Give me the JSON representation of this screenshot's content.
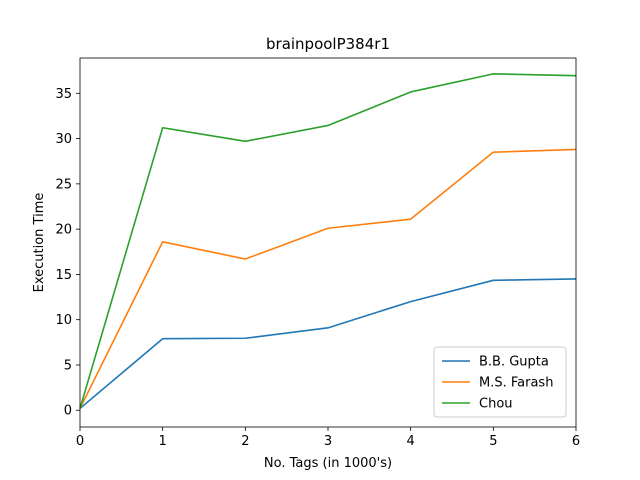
{
  "chart_data": {
    "type": "line",
    "title": "brainpoolP384r1",
    "xlabel": "No. Tags (in 1000's)",
    "ylabel": "Execution Time",
    "x": [
      0,
      1,
      2,
      3,
      4,
      5,
      6
    ],
    "xlim": [
      0,
      6
    ],
    "ylim": [
      -1.85,
      38.9
    ],
    "xticks": [
      0,
      1,
      2,
      3,
      4,
      5,
      6
    ],
    "yticks": [
      0,
      5,
      10,
      15,
      20,
      25,
      30,
      35
    ],
    "grid": false,
    "legend_position": "lower-right",
    "series": [
      {
        "name": "B.B. Gupta",
        "color": "#1f77b4",
        "values": [
          0.2,
          7.9,
          7.95,
          9.1,
          12.0,
          14.35,
          14.5
        ]
      },
      {
        "name": "M.S. Farash",
        "color": "#ff7f0e",
        "values": [
          0.2,
          18.6,
          16.7,
          20.1,
          21.1,
          28.5,
          28.8
        ]
      },
      {
        "name": "Chou",
        "color": "#2ca02c",
        "values": [
          0.2,
          31.2,
          29.7,
          31.45,
          35.15,
          37.15,
          36.95
        ]
      }
    ]
  }
}
